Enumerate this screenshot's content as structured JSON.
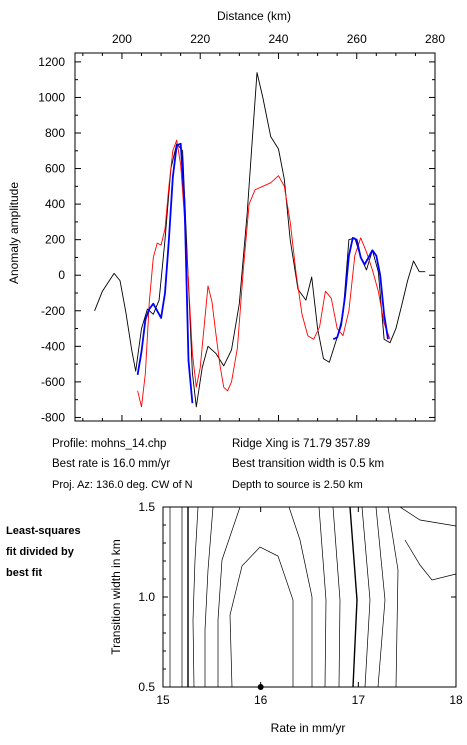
{
  "chart_data": [
    {
      "type": "line",
      "title": "",
      "x_top_label": "Distance (km)",
      "ylabel": "Anomaly amplitude",
      "xlim": [
        188,
        280
      ],
      "ylim": [
        -820,
        1250
      ],
      "xticks": [
        200,
        220,
        240,
        260,
        280
      ],
      "yticks": [
        -800,
        -600,
        -400,
        -200,
        0,
        200,
        400,
        600,
        800,
        1000,
        1200
      ],
      "series": [
        {
          "color": "#000000",
          "x": [
            193,
            195,
            196.5,
            198,
            199.5,
            201,
            202.5,
            203.5,
            205,
            206.5,
            208,
            209.5,
            211,
            212.5,
            214,
            215.5,
            216.5,
            218,
            219,
            220.5,
            222,
            224,
            226,
            228,
            230,
            232,
            233.5,
            234.5,
            236,
            238,
            240,
            241.5,
            243,
            245,
            247,
            248.5,
            250,
            251.5,
            253,
            255,
            256.5,
            258,
            259.5,
            261,
            262.5,
            264,
            265.5,
            267,
            268.5,
            270,
            271.5,
            273,
            274.5,
            276,
            277.5
          ],
          "y": [
            -200,
            -90,
            -40,
            10,
            -30,
            -210,
            -420,
            -540,
            -300,
            -190,
            -220,
            -140,
            200,
            600,
            740,
            700,
            200,
            -550,
            -740,
            -520,
            -400,
            -440,
            -510,
            -420,
            -160,
            350,
            820,
            1140,
            1000,
            780,
            710,
            540,
            200,
            -80,
            -140,
            -10,
            -300,
            -470,
            -490,
            -350,
            -220,
            200,
            210,
            100,
            30,
            140,
            20,
            -360,
            -380,
            -300,
            -170,
            -30,
            80,
            20,
            20
          ]
        },
        {
          "color": "#ff0000",
          "x": [
            204,
            205,
            206,
            207,
            208,
            209,
            210,
            211,
            212,
            213,
            214,
            215,
            215.8,
            217,
            218,
            219,
            220,
            221,
            222,
            223,
            224,
            225,
            226,
            227,
            228,
            229.5,
            231,
            232.5,
            234,
            236,
            238,
            240,
            241.5,
            243,
            244.5,
            246,
            247.5,
            249,
            250.5,
            252,
            253.5,
            255,
            256.5,
            258,
            259.5,
            261,
            262.5,
            264,
            265.5,
            267,
            268.5
          ],
          "y": [
            -650,
            -740,
            -550,
            -150,
            100,
            180,
            170,
            260,
            500,
            700,
            760,
            620,
            380,
            -40,
            -440,
            -630,
            -520,
            -290,
            -60,
            -150,
            -330,
            -500,
            -630,
            -650,
            -600,
            -410,
            30,
            400,
            480,
            500,
            520,
            560,
            500,
            300,
            10,
            -220,
            -340,
            -360,
            -290,
            -90,
            -130,
            -300,
            -340,
            -200,
            110,
            210,
            130,
            30,
            -90,
            -270,
            -360
          ]
        },
        {
          "color": "#0000ff",
          "x": [
            204,
            205,
            206,
            207,
            208,
            209,
            210,
            211,
            212,
            213,
            214,
            215,
            216,
            217,
            218
          ],
          "y": [
            -560,
            -430,
            -250,
            -190,
            -160,
            -200,
            -240,
            -100,
            200,
            550,
            730,
            740,
            400,
            -480,
            -720
          ]
        },
        {
          "color": "#0000ff",
          "x": [
            254,
            255,
            256,
            257,
            258,
            259,
            260,
            261,
            262,
            263,
            264,
            265,
            266,
            267,
            268
          ],
          "y": [
            -360,
            -350,
            -280,
            -120,
            110,
            210,
            200,
            100,
            60,
            100,
            140,
            110,
            0,
            -220,
            -360
          ]
        }
      ]
    },
    {
      "type": "contour",
      "xlabel": "Rate in mm/yr",
      "ylabel": "Transition width in km",
      "xlim": [
        15,
        18
      ],
      "ylim": [
        0.5,
        1.5
      ],
      "xticks": [
        "15",
        "16",
        "17",
        "18"
      ],
      "yticks": [
        "0.5",
        "1.0",
        "1.5"
      ],
      "best_fit_point": [
        16.0,
        0.5
      ]
    }
  ],
  "info": {
    "profile": "Profile: mohns_14.chp",
    "best_rate": "Best rate is 16.0 mm/yr",
    "proj_az": "Proj. Az: 136.0 deg. CW of N",
    "ridge_xing": "Ridge Xing is 71.79 357.89",
    "best_width": "Best transition width is 0.5 km",
    "depth": "Depth to source is   2.50 km"
  },
  "side_note": {
    "line1": "Least-squares",
    "line2": "fit divided by",
    "line3": "best fit"
  }
}
